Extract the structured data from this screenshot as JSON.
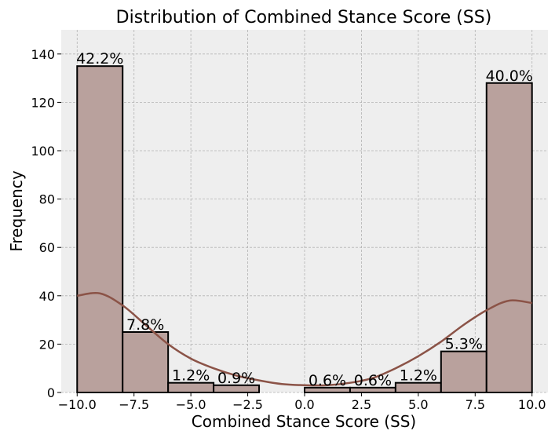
{
  "chart_data": {
    "type": "bar",
    "title": "Distribution of Combined Stance Score (SS)",
    "xlabel": "Combined Stance Score (SS)",
    "ylabel": "Frequency",
    "xlim": [
      -10.7,
      10.7
    ],
    "ylim": [
      0,
      150
    ],
    "grid": true,
    "bin_edges": [
      -10,
      -8,
      -6,
      -4,
      -2,
      0,
      2,
      4,
      6,
      8,
      10
    ],
    "counts": [
      135,
      25,
      4,
      3,
      0,
      2,
      2,
      4,
      17,
      128
    ],
    "percent_labels": [
      "42.2%",
      "7.8%",
      "1.2%",
      "0.9%",
      "",
      "0.6%",
      "0.6%",
      "1.2%",
      "5.3%",
      "40.0%"
    ],
    "x_ticks": [
      -10,
      -7.5,
      -5,
      -2.5,
      0,
      2.5,
      5,
      7.5,
      10
    ],
    "x_tick_labels": [
      "−10.0",
      "−7.5",
      "−5.0",
      "−2.5",
      "0.0",
      "2.5",
      "5.0",
      "7.5",
      "10.0"
    ],
    "y_ticks": [
      0,
      20,
      40,
      60,
      80,
      100,
      120,
      140
    ],
    "y_tick_labels": [
      "0",
      "20",
      "40",
      "60",
      "80",
      "100",
      "120",
      "140"
    ],
    "kde": {
      "x": [
        -10,
        -9,
        -8,
        -7,
        -6,
        -5,
        -4,
        -3,
        -2,
        -1,
        0,
        1,
        2,
        3,
        4,
        5,
        6,
        7,
        8,
        9,
        10
      ],
      "y": [
        40,
        41,
        36,
        28,
        20,
        14,
        10,
        7,
        5,
        3.5,
        3,
        3,
        4,
        6,
        10,
        15,
        21,
        28,
        34,
        38,
        37
      ]
    },
    "bar_color": "#b9a19d",
    "bar_edge_color": "#000000",
    "kde_color": "#8b5347",
    "plot_background": "#eeeeee",
    "grid_color": "#b3b3b3"
  }
}
